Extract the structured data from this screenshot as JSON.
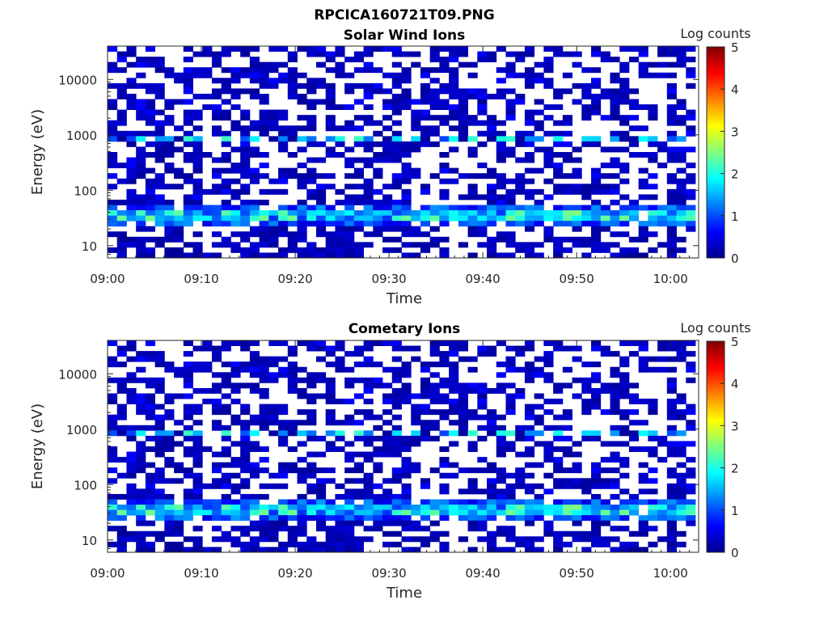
{
  "figure_title": "RPCICA160721T09.PNG",
  "chart_data": [
    {
      "type": "heatmap",
      "title": "Solar Wind Ions",
      "xlabel": "Time",
      "ylabel": "Energy (eV)",
      "x_ticks": [
        "09:00",
        "09:10",
        "09:20",
        "09:30",
        "09:40",
        "09:50",
        "10:00"
      ],
      "xlim_minutes": [
        0,
        63
      ],
      "y_scale": "log",
      "y_ticks": [
        "10",
        "100",
        "1000",
        "10000"
      ],
      "ylim": [
        6,
        40000
      ],
      "colorbar": {
        "label": "Log counts",
        "ticks": [
          "0",
          "1",
          "2",
          "3",
          "4",
          "5"
        ],
        "range": [
          0,
          5
        ],
        "colormap": "jet"
      },
      "features": [
        {
          "energy_eV": 32,
          "log_counts": 2.4,
          "note": "bright band"
        },
        {
          "energy_eV": 900,
          "log_counts": 2.0,
          "note": "periodic band"
        }
      ],
      "seed": 7
    },
    {
      "type": "heatmap",
      "title": "Cometary Ions",
      "xlabel": "Time",
      "ylabel": "Energy (eV)",
      "x_ticks": [
        "09:00",
        "09:10",
        "09:20",
        "09:30",
        "09:40",
        "09:50",
        "10:00"
      ],
      "xlim_minutes": [
        0,
        63
      ],
      "y_scale": "log",
      "y_ticks": [
        "10",
        "100",
        "1000",
        "10000"
      ],
      "ylim": [
        6,
        40000
      ],
      "colorbar": {
        "label": "Log counts",
        "ticks": [
          "0",
          "1",
          "2",
          "3",
          "4",
          "5"
        ],
        "range": [
          0,
          5
        ],
        "colormap": "jet"
      },
      "features": [
        {
          "energy_eV": 32,
          "log_counts": 2.5,
          "note": "bright band"
        },
        {
          "energy_eV": 900,
          "log_counts": 2.0,
          "note": "periodic band"
        }
      ],
      "seed": 7
    }
  ]
}
